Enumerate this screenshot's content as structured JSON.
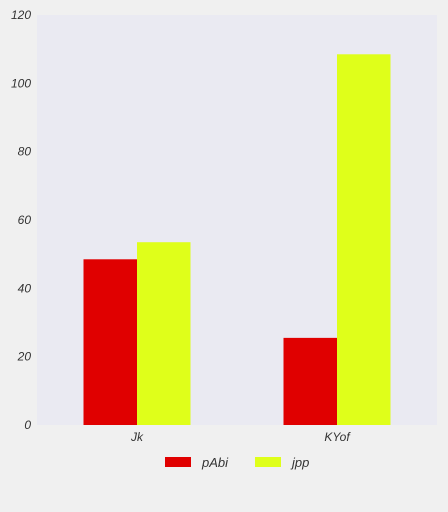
{
  "chart_data": {
    "type": "bar",
    "categories": [
      "Jk",
      "KYof"
    ],
    "series": [
      {
        "name": "pAbi",
        "values": [
          48.5,
          25.5
        ],
        "color": "#e00000"
      },
      {
        "name": "jpp",
        "values": [
          53.5,
          108.5
        ],
        "color": "#dfff1a"
      }
    ],
    "title": "",
    "xlabel": "",
    "ylabel": "",
    "ylim": [
      0,
      120
    ],
    "yticks": [
      "0",
      "20",
      "40",
      "60",
      "80",
      "100",
      "120"
    ],
    "grid": false,
    "legend_position": "bottom-center",
    "colors": {
      "plot_background": "#eaeaf2",
      "page_background": "#f0f0f0",
      "text": "#333333"
    }
  }
}
